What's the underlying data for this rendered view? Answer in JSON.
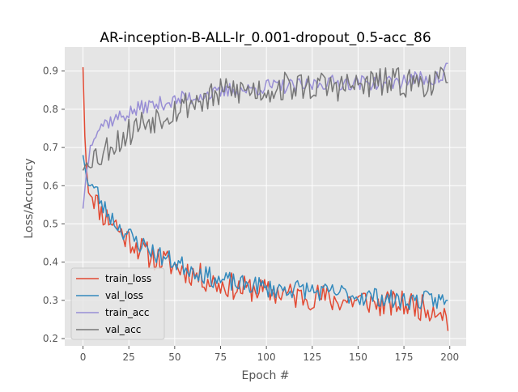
{
  "chart_data": {
    "type": "line",
    "title": "AR-inception-B-ALL-lr_0.001-dropout_0.5-acc_86",
    "xlabel": "Epoch #",
    "ylabel": "Loss/Accuracy",
    "xlim": [
      -9.95,
      208.95
    ],
    "ylim": [
      0.181,
      0.963
    ],
    "xticks": [
      0,
      25,
      50,
      75,
      100,
      125,
      150,
      175,
      200
    ],
    "yticks": [
      0.2,
      0.3,
      0.4,
      0.5,
      0.6,
      0.7,
      0.8,
      0.9
    ],
    "grid": true,
    "style": "ggplot",
    "legend_position": "lower-left",
    "series": [
      {
        "name": "train_loss",
        "color": "#E24A33",
        "keypoints": [
          [
            0,
            0.91
          ],
          [
            1,
            0.73
          ],
          [
            2,
            0.64
          ],
          [
            3,
            0.6
          ],
          [
            5,
            0.58
          ],
          [
            8,
            0.55
          ],
          [
            10,
            0.53
          ],
          [
            12,
            0.52
          ],
          [
            15,
            0.51
          ],
          [
            18,
            0.5
          ],
          [
            20,
            0.48
          ],
          [
            22,
            0.47
          ],
          [
            25,
            0.46
          ],
          [
            28,
            0.45
          ],
          [
            30,
            0.44
          ],
          [
            35,
            0.42
          ],
          [
            40,
            0.41
          ],
          [
            45,
            0.4
          ],
          [
            50,
            0.39
          ],
          [
            55,
            0.38
          ],
          [
            60,
            0.37
          ],
          [
            65,
            0.36
          ],
          [
            70,
            0.35
          ],
          [
            75,
            0.34
          ],
          [
            80,
            0.34
          ],
          [
            85,
            0.33
          ],
          [
            90,
            0.33
          ],
          [
            95,
            0.33
          ],
          [
            100,
            0.32
          ],
          [
            105,
            0.32
          ],
          [
            110,
            0.32
          ],
          [
            115,
            0.31
          ],
          [
            120,
            0.31
          ],
          [
            125,
            0.31
          ],
          [
            130,
            0.31
          ],
          [
            135,
            0.3
          ],
          [
            140,
            0.3
          ],
          [
            145,
            0.3
          ],
          [
            150,
            0.3
          ],
          [
            155,
            0.3
          ],
          [
            160,
            0.29
          ],
          [
            165,
            0.29
          ],
          [
            170,
            0.29
          ],
          [
            175,
            0.29
          ],
          [
            180,
            0.29
          ],
          [
            185,
            0.28
          ],
          [
            190,
            0.28
          ],
          [
            195,
            0.28
          ],
          [
            198,
            0.26
          ],
          [
            199,
            0.22
          ]
        ],
        "noise": 0.035,
        "seed": 11,
        "n": 200
      },
      {
        "name": "val_loss",
        "color": "#348ABD",
        "keypoints": [
          [
            0,
            0.68
          ],
          [
            2,
            0.62
          ],
          [
            5,
            0.6
          ],
          [
            8,
            0.58
          ],
          [
            10,
            0.55
          ],
          [
            15,
            0.52
          ],
          [
            20,
            0.49
          ],
          [
            25,
            0.47
          ],
          [
            30,
            0.45
          ],
          [
            35,
            0.44
          ],
          [
            40,
            0.42
          ],
          [
            45,
            0.41
          ],
          [
            50,
            0.4
          ],
          [
            55,
            0.39
          ],
          [
            60,
            0.38
          ],
          [
            65,
            0.37
          ],
          [
            70,
            0.36
          ],
          [
            75,
            0.35
          ],
          [
            80,
            0.35
          ],
          [
            85,
            0.34
          ],
          [
            90,
            0.34
          ],
          [
            95,
            0.34
          ],
          [
            100,
            0.33
          ],
          [
            110,
            0.33
          ],
          [
            120,
            0.33
          ],
          [
            130,
            0.32
          ],
          [
            140,
            0.32
          ],
          [
            150,
            0.31
          ],
          [
            160,
            0.31
          ],
          [
            170,
            0.3
          ],
          [
            180,
            0.3
          ],
          [
            190,
            0.3
          ],
          [
            199,
            0.3
          ]
        ],
        "noise": 0.025,
        "seed": 23,
        "n": 200
      },
      {
        "name": "train_acc",
        "color": "#988ED5",
        "keypoints": [
          [
            0,
            0.54
          ],
          [
            2,
            0.64
          ],
          [
            4,
            0.7
          ],
          [
            6,
            0.74
          ],
          [
            10,
            0.76
          ],
          [
            15,
            0.77
          ],
          [
            20,
            0.78
          ],
          [
            25,
            0.79
          ],
          [
            30,
            0.8
          ],
          [
            35,
            0.81
          ],
          [
            40,
            0.81
          ],
          [
            45,
            0.82
          ],
          [
            50,
            0.82
          ],
          [
            55,
            0.83
          ],
          [
            60,
            0.83
          ],
          [
            65,
            0.84
          ],
          [
            70,
            0.84
          ],
          [
            75,
            0.84
          ],
          [
            80,
            0.85
          ],
          [
            90,
            0.85
          ],
          [
            100,
            0.86
          ],
          [
            110,
            0.86
          ],
          [
            120,
            0.86
          ],
          [
            130,
            0.87
          ],
          [
            140,
            0.87
          ],
          [
            150,
            0.87
          ],
          [
            160,
            0.87
          ],
          [
            170,
            0.87
          ],
          [
            180,
            0.88
          ],
          [
            190,
            0.88
          ],
          [
            196,
            0.88
          ],
          [
            198,
            0.92
          ],
          [
            199,
            0.92
          ]
        ],
        "noise": 0.02,
        "seed": 37,
        "n": 200
      },
      {
        "name": "val_acc",
        "color": "#777777",
        "keypoints": [
          [
            0,
            0.64
          ],
          [
            2,
            0.66
          ],
          [
            4,
            0.68
          ],
          [
            6,
            0.68
          ],
          [
            10,
            0.68
          ],
          [
            15,
            0.71
          ],
          [
            20,
            0.72
          ],
          [
            25,
            0.74
          ],
          [
            30,
            0.76
          ],
          [
            35,
            0.77
          ],
          [
            40,
            0.78
          ],
          [
            45,
            0.79
          ],
          [
            50,
            0.8
          ],
          [
            55,
            0.81
          ],
          [
            60,
            0.82
          ],
          [
            70,
            0.83
          ],
          [
            75,
            0.84
          ],
          [
            80,
            0.85
          ],
          [
            90,
            0.85
          ],
          [
            100,
            0.85
          ],
          [
            110,
            0.86
          ],
          [
            120,
            0.86
          ],
          [
            130,
            0.86
          ],
          [
            140,
            0.86
          ],
          [
            150,
            0.86
          ],
          [
            160,
            0.87
          ],
          [
            170,
            0.87
          ],
          [
            180,
            0.87
          ],
          [
            190,
            0.87
          ],
          [
            199,
            0.87
          ]
        ],
        "noise": 0.04,
        "seed": 53,
        "n": 200
      }
    ]
  }
}
